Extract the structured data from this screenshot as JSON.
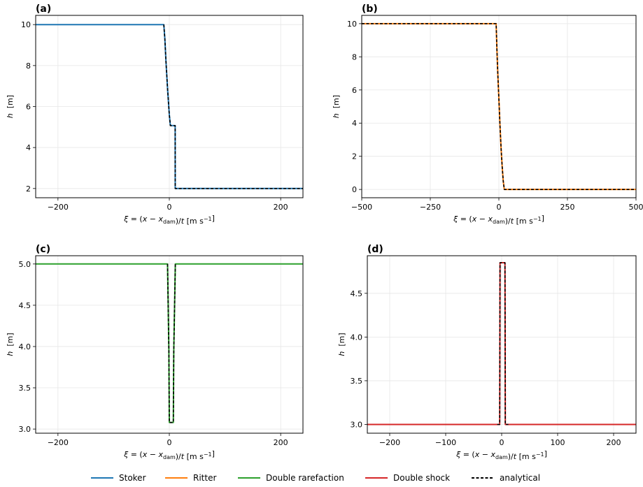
{
  "legend": {
    "entries": [
      {
        "label": "Stoker",
        "color": "#1f77b4",
        "dashed": false
      },
      {
        "label": "Ritter",
        "color": "#ff7f0e",
        "dashed": false
      },
      {
        "label": "Double rarefaction",
        "color": "#2ca02c",
        "dashed": false
      },
      {
        "label": "Double shock",
        "color": "#d62728",
        "dashed": false
      },
      {
        "label": "analytical",
        "color": "#000000",
        "dashed": true
      }
    ]
  },
  "chart_data": [
    {
      "type": "line",
      "panel_label": "(a)",
      "xlabel": "ξ = (x − x_dam)/t  [m s⁻¹]",
      "ylabel": "h  [m]",
      "xlim": [
        -240,
        240
      ],
      "ylim": [
        1.55,
        10.45
      ],
      "xticks": [
        -200,
        0,
        200
      ],
      "xtick_labels": [
        "−200",
        "0",
        "200"
      ],
      "yticks": [
        2,
        4,
        6,
        8,
        10
      ],
      "ytick_labels": [
        "2",
        "4",
        "6",
        "8",
        "10"
      ],
      "grid": true,
      "series": [
        {
          "name": "Stoker",
          "color": "#1f77b4",
          "x": [
            -240,
            -9.9,
            -8,
            -6,
            -3,
            0,
            1.8,
            3.8,
            4,
            10.5,
            10.6,
            11.5,
            240
          ],
          "y": [
            10,
            10,
            9.3,
            8.2,
            6.8,
            5.6,
            5.1,
            5.07,
            5.07,
            5.07,
            2.0,
            2.0,
            2.0
          ]
        },
        {
          "name": "analytical",
          "color": "#000000",
          "dashed": true,
          "x": [
            -9.9,
            -8,
            -6,
            -3,
            0,
            1.8,
            10.5,
            10.6,
            240
          ],
          "y": [
            10,
            9.3,
            8.2,
            6.8,
            5.6,
            5.07,
            5.07,
            2.0,
            2.0
          ]
        }
      ]
    },
    {
      "type": "line",
      "panel_label": "(b)",
      "xlabel": "ξ = (x − x_dam)/t  [m s⁻¹]",
      "ylabel": "h  [m]",
      "xlim": [
        -500,
        500
      ],
      "ylim": [
        -0.5,
        10.5
      ],
      "xticks": [
        -500,
        -250,
        0,
        250,
        500
      ],
      "xtick_labels": [
        "−500",
        "−250",
        "0",
        "250",
        "500"
      ],
      "yticks": [
        0,
        2,
        4,
        6,
        8,
        10
      ],
      "ytick_labels": [
        "0",
        "2",
        "4",
        "6",
        "8",
        "10"
      ],
      "grid": true,
      "series": [
        {
          "name": "Ritter",
          "color": "#ff7f0e",
          "x": [
            -500,
            -9.9,
            -7,
            -4,
            0,
            4,
            8,
            12,
            16,
            19.8,
            500
          ],
          "y": [
            10,
            10,
            8.4,
            7.0,
            5.5,
            3.9,
            2.5,
            1.4,
            0.5,
            0.0,
            0.0
          ]
        },
        {
          "name": "analytical",
          "color": "#000000",
          "dashed": true,
          "x": [
            -500,
            -9.9,
            -7,
            -4,
            0,
            4,
            8,
            12,
            16,
            19.8,
            500
          ],
          "y": [
            10,
            10,
            8.4,
            7.0,
            5.5,
            3.9,
            2.5,
            1.4,
            0.5,
            0.0,
            0.0
          ]
        }
      ]
    },
    {
      "type": "line",
      "panel_label": "(c)",
      "xlabel": "ξ = (x − x_dam)/t  [m s⁻¹]",
      "ylabel": "h  [m]",
      "xlim": [
        -240,
        240
      ],
      "ylim": [
        2.95,
        5.1
      ],
      "xticks": [
        -200,
        0,
        200
      ],
      "xtick_labels": [
        "−200",
        "0",
        "200"
      ],
      "yticks": [
        3.0,
        3.5,
        4.0,
        4.5,
        5.0
      ],
      "ytick_labels": [
        "3.0",
        "3.5",
        "4.0",
        "4.5",
        "5.0"
      ],
      "grid": true,
      "series": [
        {
          "name": "Double rarefaction",
          "color": "#2ca02c",
          "x": [
            -240,
            -3.2,
            -0.8,
            0,
            7.2,
            8,
            10.8,
            240
          ],
          "y": [
            5.0,
            5.0,
            3.95,
            3.08,
            3.08,
            3.95,
            5.0,
            5.0
          ]
        },
        {
          "name": "analytical",
          "color": "#000000",
          "dashed": true,
          "x": [
            -3.2,
            -0.8,
            0,
            7.2,
            8,
            10.8
          ],
          "y": [
            5.0,
            3.95,
            3.08,
            3.08,
            3.95,
            5.0
          ]
        }
      ]
    },
    {
      "type": "line",
      "panel_label": "(d)",
      "xlabel": "ξ = (x − x_dam)/t  [m s⁻¹]",
      "ylabel": "h  [m]",
      "xlim": [
        -240,
        240
      ],
      "ylim": [
        2.9,
        4.93
      ],
      "xticks": [
        -200,
        -100,
        0,
        100,
        200
      ],
      "xtick_labels": [
        "−200",
        "−100",
        "0",
        "100",
        "200"
      ],
      "yticks": [
        3.0,
        3.5,
        4.0,
        4.5
      ],
      "ytick_labels": [
        "3.0",
        "3.5",
        "4.0",
        "4.5"
      ],
      "grid": true,
      "series": [
        {
          "name": "Double shock",
          "color": "#d62728",
          "x": [
            -240,
            -3.5,
            -2.9,
            5.9,
            6.5,
            240
          ],
          "y": [
            3.0,
            3.0,
            4.85,
            4.85,
            3.0,
            3.0
          ]
        },
        {
          "name": "analytical",
          "color": "#000000",
          "dashed": true,
          "x": [
            -8,
            -3.5,
            -2.9,
            5.9,
            6.5,
            12
          ],
          "y": [
            3.0,
            3.0,
            4.85,
            4.85,
            3.0,
            3.0
          ]
        }
      ]
    }
  ]
}
